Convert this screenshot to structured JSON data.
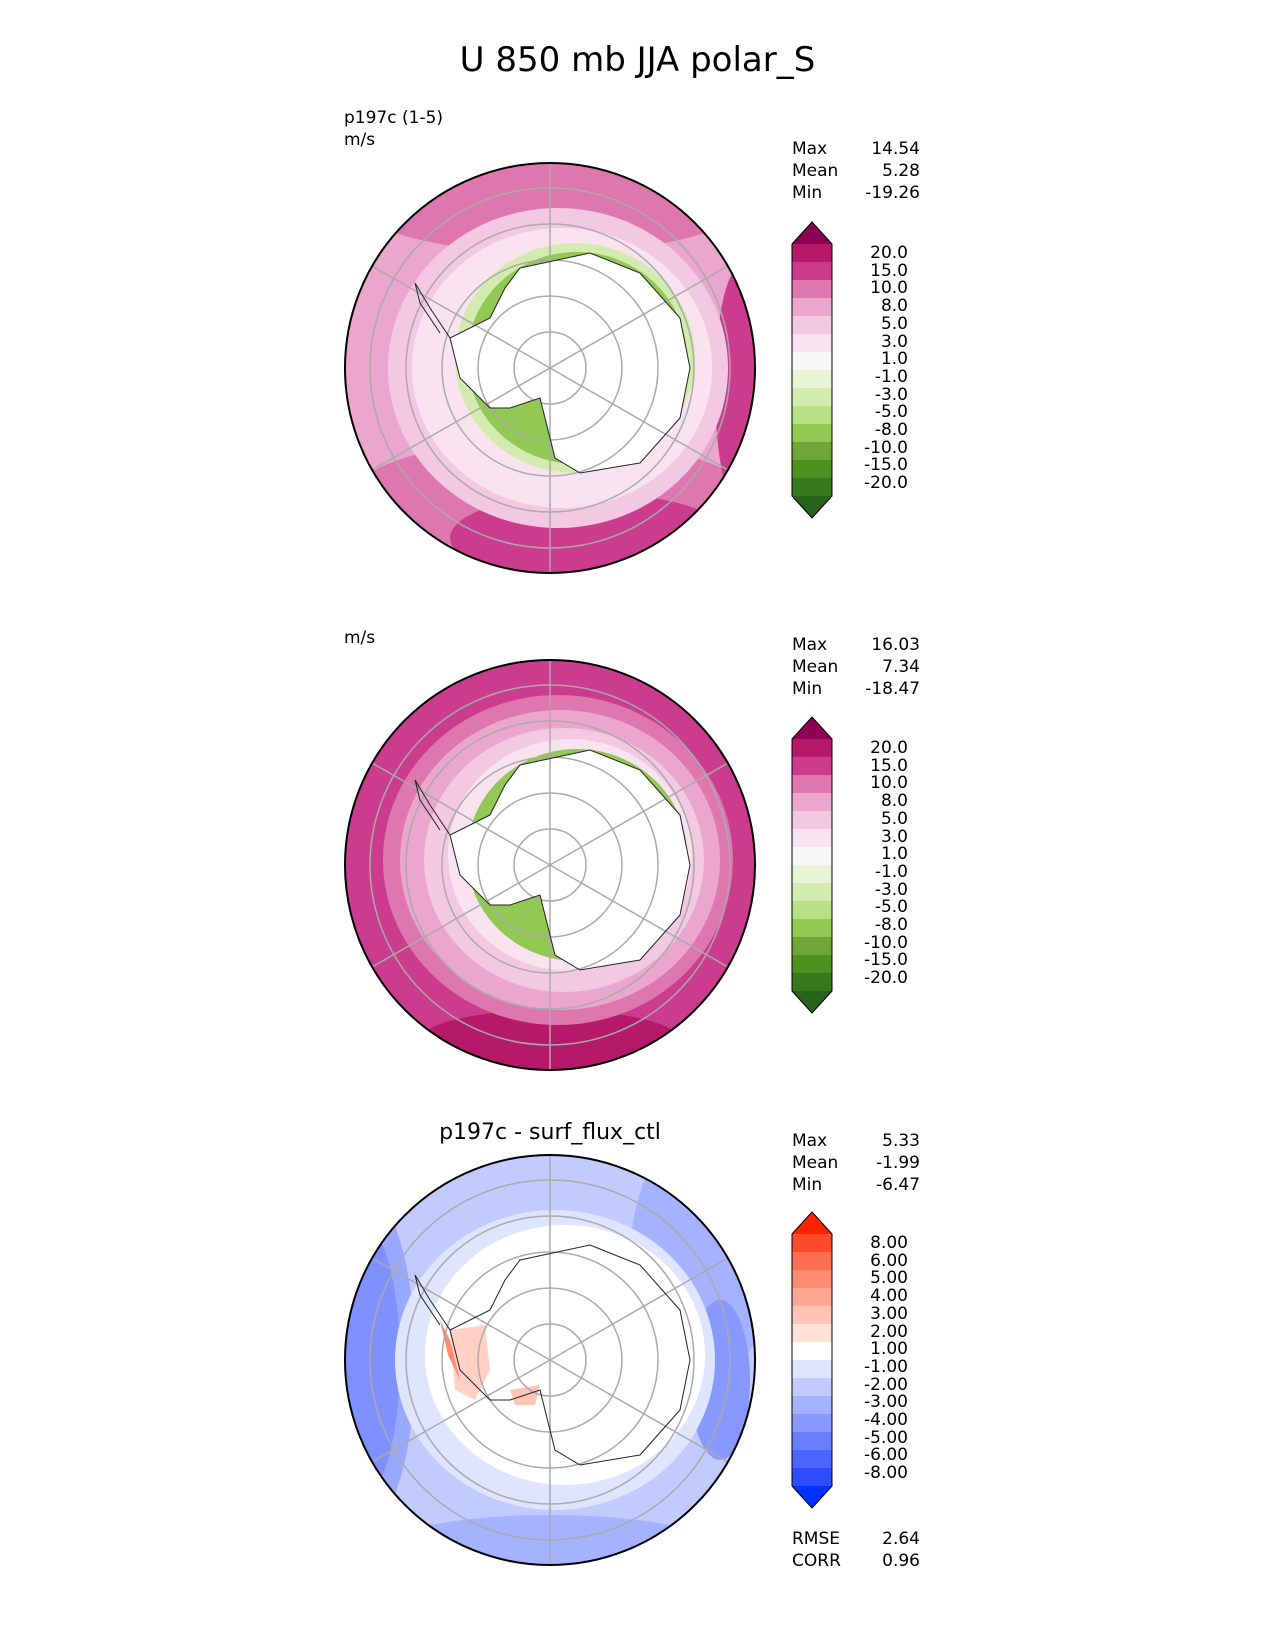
{
  "title": "U 850 mb JJA polar_S",
  "panels": [
    {
      "label_lines": [
        "p197c (1-5)",
        "m/s"
      ],
      "title": "",
      "stats": {
        "max_label": "Max",
        "max": "14.54",
        "mean_label": "Mean",
        "mean": "5.28",
        "min_label": "Min",
        "min": "-19.26"
      },
      "colorbar": {
        "labels": [
          "20.0",
          "15.0",
          "10.0",
          "8.0",
          "5.0",
          "3.0",
          "1.0",
          "-1.0",
          "-3.0",
          "-5.0",
          "-8.0",
          "-10.0",
          "-15.0",
          "-20.0"
        ],
        "colors": [
          "#8e0152",
          "#b6196a",
          "#cb3c8f",
          "#de77ae",
          "#eba6cd",
          "#f3c8e2",
          "#f9e3ef",
          "#f7f7f7",
          "#e8f4d6",
          "#d3ebaf",
          "#b8e186",
          "#92c854",
          "#6da837",
          "#4d9221",
          "#347a1c",
          "#276419"
        ]
      }
    },
    {
      "label_lines": [
        "m/s"
      ],
      "title": "",
      "stats": {
        "max_label": "Max",
        "max": "16.03",
        "mean_label": "Mean",
        "mean": "7.34",
        "min_label": "Min",
        "min": "-18.47"
      },
      "colorbar": {
        "labels": [
          "20.0",
          "15.0",
          "10.0",
          "8.0",
          "5.0",
          "3.0",
          "1.0",
          "-1.0",
          "-3.0",
          "-5.0",
          "-8.0",
          "-10.0",
          "-15.0",
          "-20.0"
        ],
        "colors": [
          "#8e0152",
          "#b6196a",
          "#cb3c8f",
          "#de77ae",
          "#eba6cd",
          "#f3c8e2",
          "#f9e3ef",
          "#f7f7f7",
          "#e8f4d6",
          "#d3ebaf",
          "#b8e186",
          "#92c854",
          "#6da837",
          "#4d9221",
          "#347a1c",
          "#276419"
        ]
      }
    },
    {
      "label_lines": [],
      "title": "p197c - surf_flux_ctl",
      "stats": {
        "max_label": "Max",
        "max": "5.33",
        "mean_label": "Mean",
        "mean": "-1.99",
        "min_label": "Min",
        "min": "-6.47"
      },
      "colorbar": {
        "labels": [
          "8.00",
          "6.00",
          "5.00",
          "4.00",
          "3.00",
          "2.00",
          "1.00",
          "-1.00",
          "-2.00",
          "-3.00",
          "-4.00",
          "-5.00",
          "-6.00",
          "-8.00"
        ],
        "colors": [
          "#ff2200",
          "#ff4a2a",
          "#ff6e50",
          "#ff8b72",
          "#ffa792",
          "#ffc4b4",
          "#ffe1d8",
          "#ffffff",
          "#dfe4ff",
          "#c2cbff",
          "#a4b2ff",
          "#8798ff",
          "#6a7fff",
          "#4c65ff",
          "#2e4cff",
          "#0033ff"
        ]
      },
      "metrics": {
        "rmse_label": "RMSE",
        "rmse": "2.64",
        "corr_label": "CORR",
        "corr": "0.96"
      }
    }
  ]
}
